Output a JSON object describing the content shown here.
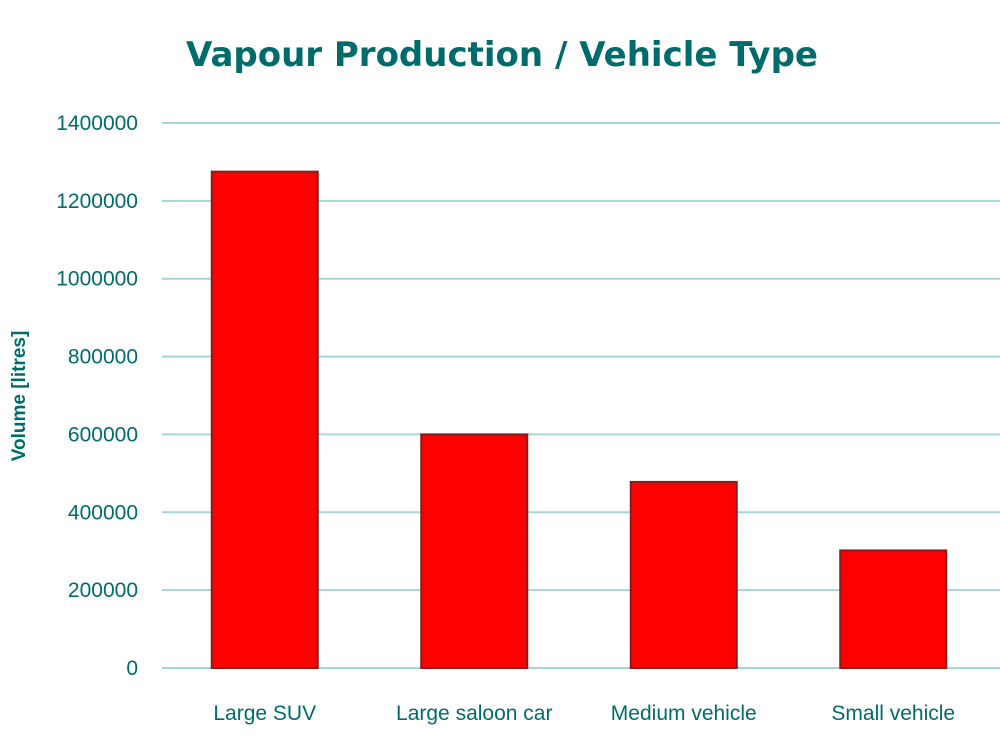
{
  "chart_data": {
    "type": "bar",
    "title": "Vapour Production / Vehicle Type",
    "xlabel": "",
    "ylabel": "Volume [litres]",
    "categories": [
      "Large SUV",
      "Large saloon car",
      "Medium vehicle",
      "Small vehicle"
    ],
    "values": [
      1275000,
      600000,
      478000,
      302000
    ],
    "ylim": [
      0,
      1400000
    ],
    "yticks": [
      0,
      200000,
      400000,
      600000,
      800000,
      1000000,
      1200000,
      1400000
    ],
    "ytick_labels": [
      "0",
      "200000",
      "400000",
      "600000",
      "800000",
      "1000000",
      "1200000",
      "1400000"
    ],
    "grid": true,
    "legend": "none",
    "colors": {
      "bar": "#ff0000",
      "bar_edge": "#8b1a1a",
      "text": "#006b6b",
      "grid": "#a8d4d4",
      "baseline": "#a8d4d4"
    }
  }
}
